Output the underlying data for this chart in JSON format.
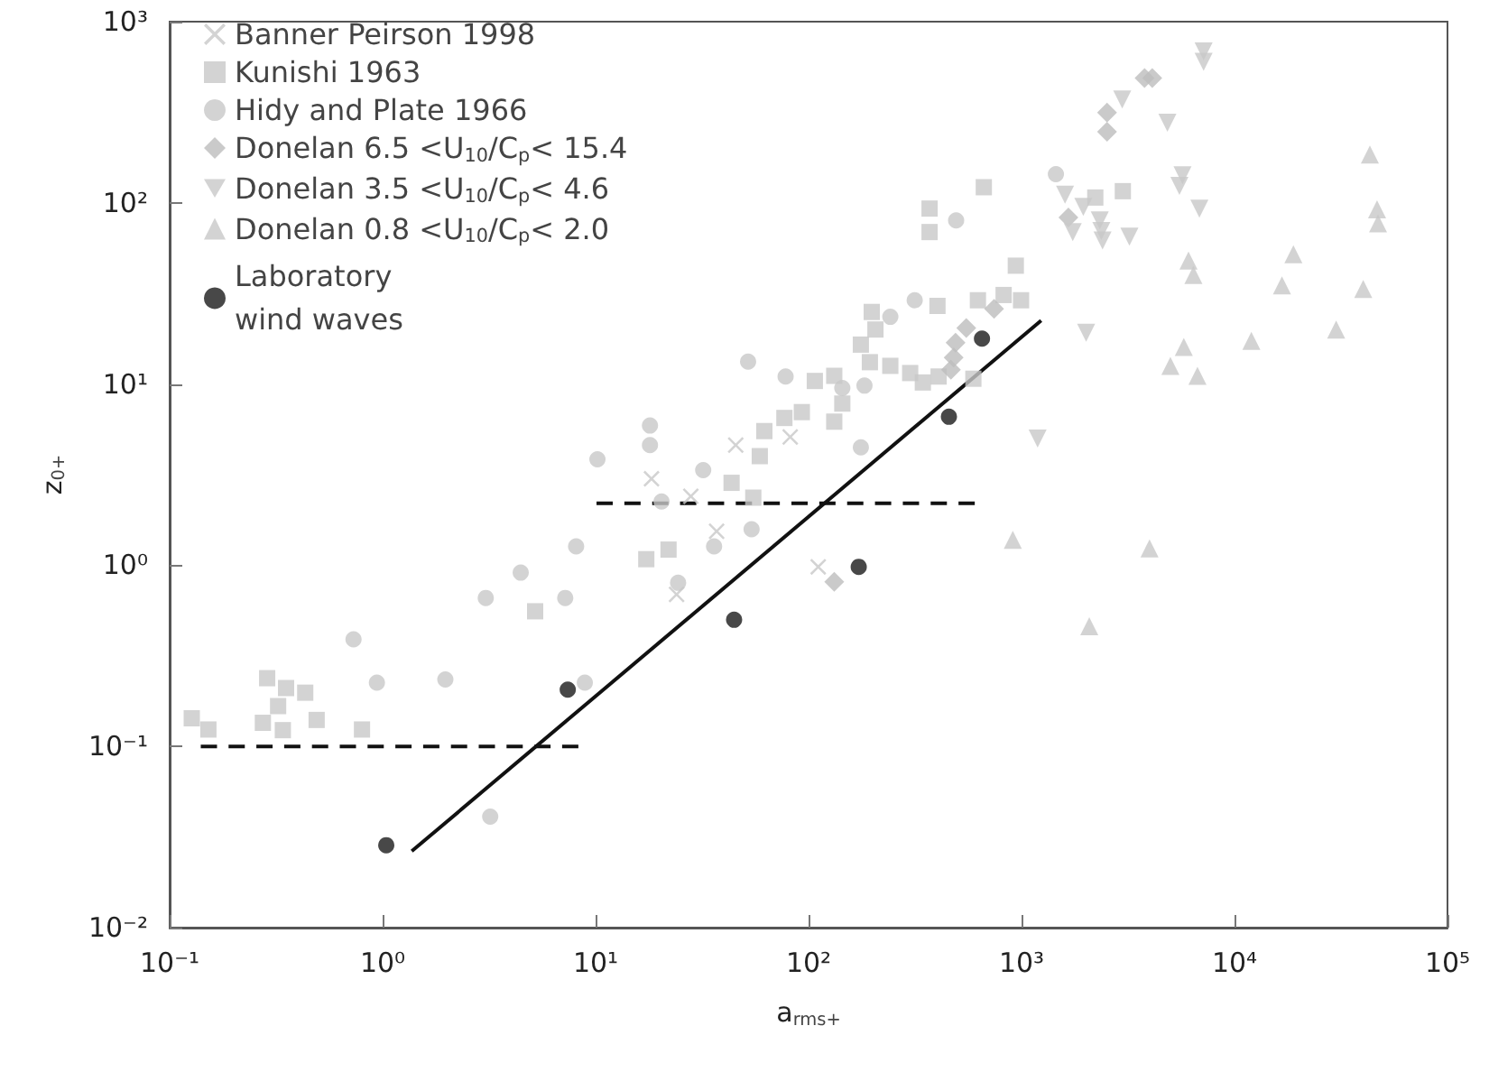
{
  "chart_data": {
    "type": "scatter",
    "xlabel": "a$_{rms+}$",
    "ylabel": "z$_{0+}$",
    "log": "xy",
    "legend": "top left",
    "xlim": [
      0.1,
      100000
    ],
    "ylim": [
      0.01,
      1000
    ],
    "xticks": [
      {
        "value": 0.1,
        "label": "10⁻¹"
      },
      {
        "value": 1,
        "label": "10⁰"
      },
      {
        "value": 10,
        "label": "10¹"
      },
      {
        "value": 100,
        "label": "10²"
      },
      {
        "value": 1000,
        "label": "10³"
      },
      {
        "value": 10000,
        "label": "10⁴"
      },
      {
        "value": 100000,
        "label": "10⁵"
      }
    ],
    "yticks": [
      {
        "value": 0.01,
        "label": "10⁻²"
      },
      {
        "value": 0.1,
        "label": "10⁻¹"
      },
      {
        "value": 1,
        "label": "10⁰"
      },
      {
        "value": 10,
        "label": "10¹"
      },
      {
        "value": 100,
        "label": "10²"
      },
      {
        "value": 1000,
        "label": "10³"
      }
    ],
    "series": [
      {
        "name": "Banner Peirson 1998",
        "color": "#c8c8c8",
        "marker": "cross",
        "x": [
          18.3,
          45.5,
          82,
          28,
          37,
          24,
          111
        ],
        "values": [
          3.0,
          4.6,
          5.1,
          2.4,
          1.54,
          0.69,
          0.98
        ]
      },
      {
        "name": "Kunishi 1963",
        "color": "#c8c8c8",
        "marker": "square",
        "x": [
          0.127,
          0.152,
          0.287,
          0.352,
          0.323,
          0.274,
          0.34,
          0.433,
          0.49,
          0.8,
          5.2,
          17.3,
          22,
          43.5,
          55,
          59,
          62,
          77,
          93,
          107,
          132,
          144,
          132,
          176,
          194,
          206,
          198,
          242,
          300,
          344,
          408,
          594,
          403,
          624,
          824,
          995,
          940,
          370,
          370,
          665,
          2220,
          2990
        ],
        "values": [
          0.143,
          0.124,
          0.238,
          0.21,
          0.167,
          0.135,
          0.123,
          0.198,
          0.14,
          0.124,
          0.557,
          1.08,
          1.22,
          2.85,
          2.36,
          4.0,
          5.5,
          6.5,
          7.0,
          10.4,
          11.1,
          7.8,
          6.2,
          16.5,
          13.2,
          20,
          25,
          12.6,
          11.5,
          10.2,
          11,
          10.7,
          27,
          29,
          31,
          29,
          45,
          69,
          93,
          122,
          107,
          116
        ]
      },
      {
        "name": "Hidy and Plate 1966",
        "color": "#c8c8c8",
        "marker": "circle",
        "x": [
          0.73,
          0.94,
          1.97,
          3.05,
          4.45,
          7.2,
          3.2,
          8.1,
          8.9,
          10.2,
          18,
          18,
          32,
          52,
          78,
          183,
          176,
          315,
          242,
          493,
          54,
          24.4,
          36,
          20.4,
          144,
          1450
        ],
        "values": [
          0.39,
          0.225,
          0.234,
          0.66,
          0.91,
          0.66,
          0.041,
          1.27,
          0.225,
          3.84,
          5.9,
          4.6,
          3.35,
          13.3,
          11,
          9.8,
          4.47,
          29,
          23.5,
          80,
          1.58,
          0.8,
          1.27,
          2.25,
          9.5,
          144
        ]
      },
      {
        "name": "Donelan 6.5 <U$_{10}$/C$_{p}$< 15.4",
        "color": "#bdbdbd",
        "marker": "diamond",
        "x": [
          132,
          550,
          490,
          480,
          466,
          743,
          1660,
          2520,
          2520,
          3780,
          4110
        ],
        "values": [
          0.81,
          20.4,
          16.9,
          14,
          12,
          26,
          83,
          315,
          247,
          489,
          489
        ]
      },
      {
        "name": "Donelan 3.5 <U$_{10}$/C$_{p}$< 4.6",
        "color": "#c8c8c8",
        "marker": "triangle-down",
        "x": [
          1190,
          7160,
          7160,
          2970,
          4840,
          5700,
          5510,
          6840,
          1600,
          1950,
          2330,
          2370,
          2400,
          1740,
          3210,
          2010
        ],
        "values": [
          5.0,
          684,
          600,
          372,
          277,
          142,
          124,
          93,
          111,
          95,
          80,
          70,
          62,
          69,
          65,
          19.2
        ]
      },
      {
        "name": "Donelan 0.8 <U$_{10}$/C$_{p}$< 2.0",
        "color": "#c8c8c8",
        "marker": "triangle",
        "x": [
          910,
          43200,
          46700,
          47200,
          6080,
          6410,
          18900,
          16700,
          40200,
          30000,
          12000,
          5780,
          5000,
          6700,
          3990,
          2080
        ],
        "values": [
          1.38,
          185,
          92,
          77,
          48,
          40,
          52,
          35,
          33.5,
          20,
          17.3,
          16,
          12.6,
          11.1,
          1.24,
          0.46
        ]
      },
      {
        "name": "Laboratory wind waves",
        "color": "#1a1a1a",
        "marker": "circle",
        "x": [
          1.04,
          7.4,
          44.7,
          172,
          456,
          652
        ],
        "values": [
          0.0285,
          0.206,
          0.5,
          0.98,
          6.6,
          17.8
        ]
      },
      {
        "type": "line",
        "color": "#111111",
        "marker": "none",
        "line_style": "solid",
        "x": [
          1.37,
          1236
        ],
        "values": [
          0.0264,
          22.4
        ]
      },
      {
        "type": "line",
        "color": "#111111",
        "marker": "none",
        "line_style": "dashed",
        "x": [
          0.14,
          8.3
        ],
        "values": [
          0.1,
          0.1
        ]
      },
      {
        "type": "line",
        "color": "#111111",
        "marker": "none",
        "line_style": "dashed",
        "x": [
          10.1,
          603
        ],
        "values": [
          2.2,
          2.2
        ]
      }
    ]
  }
}
